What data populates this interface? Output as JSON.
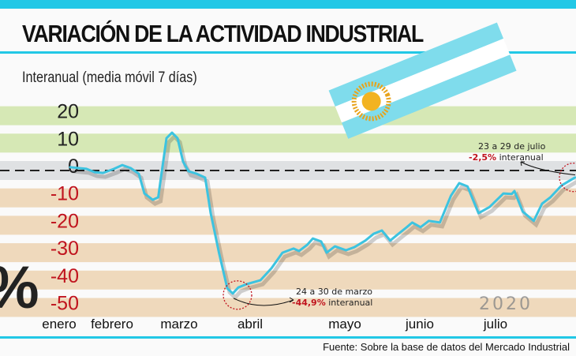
{
  "header": {
    "title": "VARIACIÓN DE LA ACTIVIDAD INDUSTRIAL",
    "subtitle": "Interanual (media móvil 7 días)"
  },
  "colors": {
    "accent": "#22c8e6",
    "line": "#3cc3e0",
    "negative_tick": "#c0141e",
    "positive_band": "#cfe4a8",
    "negative_band": "#ecd2b0",
    "highlight_red": "#c0141e"
  },
  "decor": {
    "percent_sign": "%",
    "year_watermark": "2020",
    "flag_icon": "argentina-flag"
  },
  "chart_data": {
    "type": "line",
    "title": "VARIACIÓN DE LA ACTIVIDAD INDUSTRIAL",
    "subtitle": "Interanual (media móvil 7 días)",
    "ylabel": "%",
    "ylim": [
      -50,
      20
    ],
    "yticks": [
      "20",
      "10",
      "0",
      "-10",
      "-20",
      "-30",
      "-40",
      "-50"
    ],
    "ytick_values": [
      20,
      10,
      0,
      -10,
      -20,
      -30,
      -40,
      -50
    ],
    "months": [
      "enero",
      "febrero",
      "marzo",
      "abril",
      "mayo",
      "junio",
      "julio"
    ],
    "reference_line": 0,
    "grid": false,
    "x": [
      "2020-01-28",
      "2020-01-31",
      "2020-02-03",
      "2020-02-06",
      "2020-02-09",
      "2020-02-13",
      "2020-02-16",
      "2020-02-19",
      "2020-02-22",
      "2020-02-24",
      "2020-02-27",
      "2020-02-29",
      "2020-03-01",
      "2020-03-03",
      "2020-03-05",
      "2020-03-07",
      "2020-03-09",
      "2020-03-11",
      "2020-03-14",
      "2020-03-17",
      "2020-03-19",
      "2020-03-22",
      "2020-03-25",
      "2020-03-27",
      "2020-03-29",
      "2020-04-01",
      "2020-04-06",
      "2020-04-10",
      "2020-04-14",
      "2020-04-18",
      "2020-04-20",
      "2020-04-23",
      "2020-04-25",
      "2020-04-28",
      "2020-04-30",
      "2020-05-03",
      "2020-05-07",
      "2020-05-10",
      "2020-05-14",
      "2020-05-17",
      "2020-05-20",
      "2020-05-23",
      "2020-05-26",
      "2020-05-29",
      "2020-05-31",
      "2020-06-03",
      "2020-06-06",
      "2020-06-10",
      "2020-06-14",
      "2020-06-17",
      "2020-06-20",
      "2020-06-24",
      "2020-06-28",
      "2020-07-03",
      "2020-07-06",
      "2020-07-07",
      "2020-07-10",
      "2020-07-14",
      "2020-07-17",
      "2020-07-20",
      "2020-07-24",
      "2020-07-29"
    ],
    "values": [
      1.2,
      0.9,
      0.6,
      -0.6,
      -0.9,
      0.6,
      2.0,
      0.9,
      -1.2,
      -8.4,
      -10.7,
      -9.8,
      -2.6,
      11.8,
      13.8,
      11.8,
      3.2,
      -0.3,
      -1.2,
      -2.6,
      -15.6,
      -30.0,
      -43.0,
      -44.9,
      -42.7,
      -41.5,
      -40.1,
      -35.7,
      -30.0,
      -28.5,
      -29.4,
      -27.1,
      -24.8,
      -25.9,
      -30.0,
      -27.7,
      -29.1,
      -28.0,
      -25.6,
      -23.1,
      -21.9,
      -25.6,
      -23.1,
      -20.7,
      -19.0,
      -20.7,
      -18.4,
      -19.0,
      -9.2,
      -4.6,
      -5.8,
      -15.6,
      -13.3,
      -8.4,
      -8.6,
      -7.5,
      -15.0,
      -18.4,
      -12.1,
      -9.8,
      -5.5,
      -2.5
    ],
    "annotations": [
      {
        "period": "24 a 30 de marzo",
        "value": "-44,9%",
        "suffix": " interanual",
        "date": "2020-03-27",
        "y": -44.9
      },
      {
        "period": "23 a 29 de julio",
        "value": "-2,5%",
        "suffix": " interanual",
        "date": "2020-07-29",
        "y": -2.5
      }
    ]
  },
  "footer": {
    "source": "Fuente: Sobre la base de datos del Mercado Industrial"
  }
}
